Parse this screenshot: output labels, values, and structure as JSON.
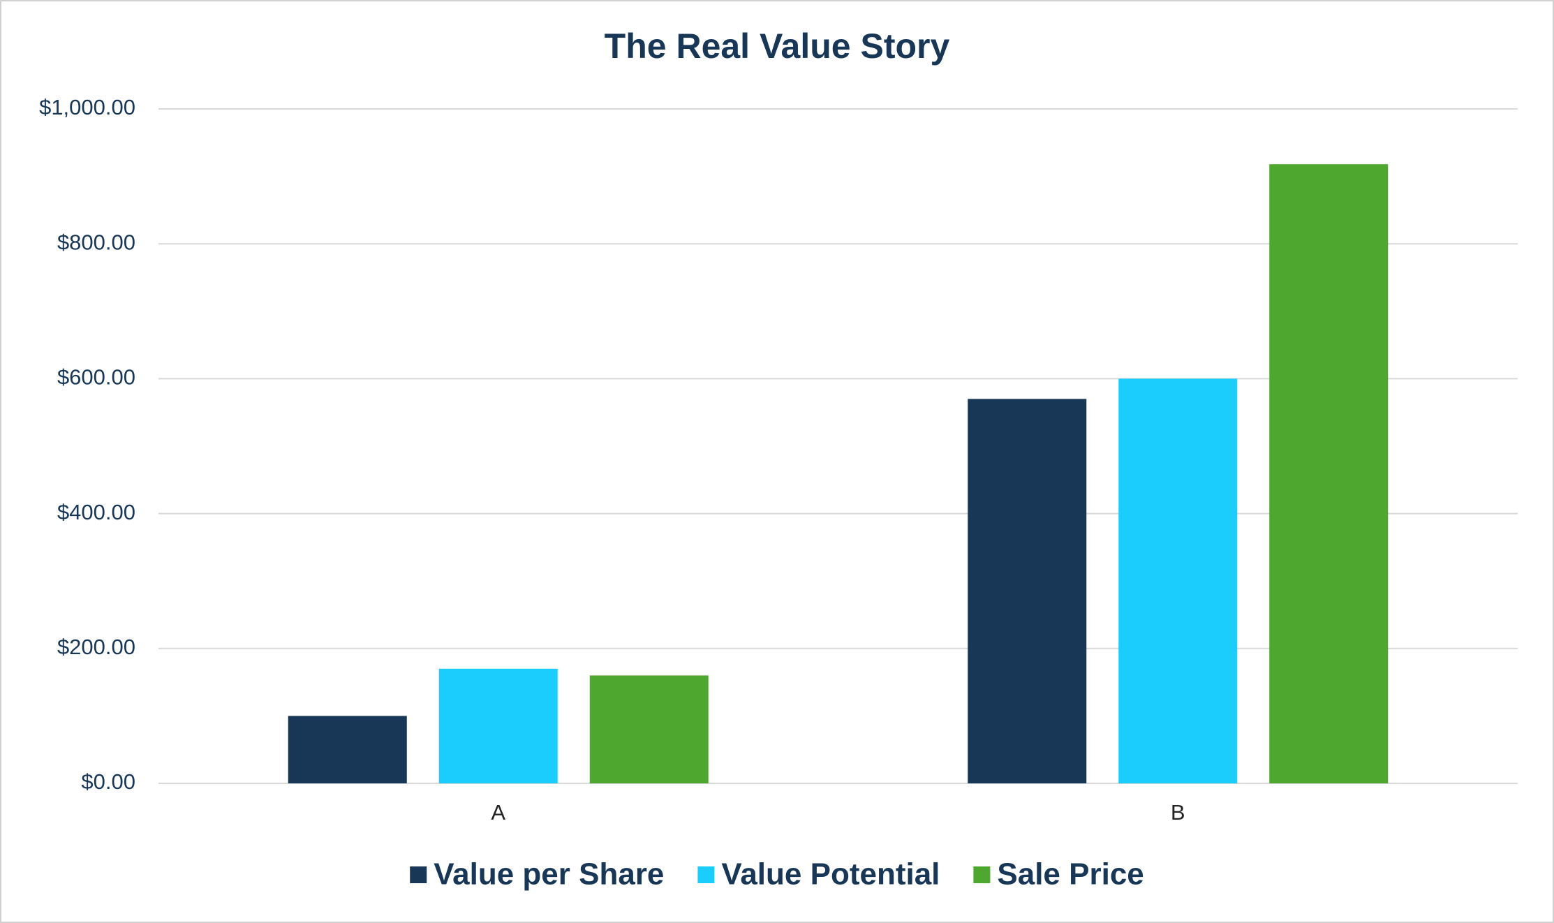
{
  "chart_data": {
    "type": "bar",
    "title": "The Real Value Story",
    "categories": [
      "A",
      "B"
    ],
    "series": [
      {
        "name": "Value per Share",
        "color": "#183656",
        "values": [
          100,
          570
        ]
      },
      {
        "name": "Value Potential",
        "color": "#1acdfc",
        "values": [
          170,
          600
        ]
      },
      {
        "name": "Sale Price",
        "color": "#4ea72e",
        "values": [
          160,
          918
        ]
      }
    ],
    "ylim": [
      0,
      1000
    ],
    "yticks": [
      {
        "value": 0,
        "label": "$0.00"
      },
      {
        "value": 200,
        "label": "$200.00"
      },
      {
        "value": 400,
        "label": "$400.00"
      },
      {
        "value": 600,
        "label": "$600.00"
      },
      {
        "value": 800,
        "label": "$800.00"
      },
      {
        "value": 1000,
        "label": "$1,000.00"
      }
    ],
    "grid": true,
    "legend": "bottom"
  }
}
